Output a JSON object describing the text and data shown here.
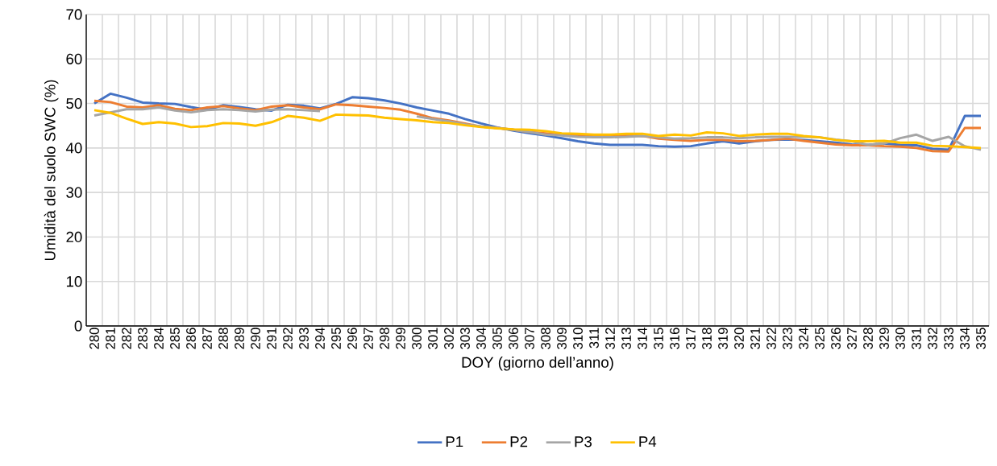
{
  "chart_data": {
    "type": "line",
    "xlabel": "DOY (giorno dell’anno)",
    "ylabel": "Umidità del suolo SWC (%)",
    "categories": [
      "280",
      "281",
      "282",
      "283",
      "284",
      "285",
      "286",
      "287",
      "288",
      "289",
      "290",
      "291",
      "292",
      "293",
      "294",
      "295",
      "296",
      "297",
      "298",
      "299",
      "300",
      "301",
      "302",
      "303",
      "304",
      "305",
      "306",
      "307",
      "308",
      "309",
      "310",
      "311",
      "312",
      "313",
      "314",
      "315",
      "316",
      "317",
      "318",
      "319",
      "320",
      "321",
      "322",
      "323",
      "324",
      "325",
      "326",
      "327",
      "328",
      "329",
      "330",
      "331",
      "332",
      "333",
      "334",
      "335"
    ],
    "series": [
      {
        "name": "P1",
        "color": "#4472c4",
        "values": [
          50,
          52.2,
          51.3,
          50.2,
          50,
          49.9,
          49.2,
          48.6,
          49.6,
          49.2,
          48.7,
          48.4,
          49.7,
          49.5,
          48.9,
          49.9,
          51.4,
          51.2,
          50.7,
          50,
          49.1,
          48.4,
          47.7,
          46.5,
          45.5,
          44.6,
          43.9,
          43.3,
          42.8,
          42.2,
          41.5,
          41,
          40.7,
          40.7,
          40.7,
          40.4,
          40.3,
          40.4,
          41,
          41.5,
          41,
          41.5,
          41.8,
          41.9,
          41.8,
          41.5,
          41.2,
          40.8,
          40.7,
          41,
          40.7,
          40.6,
          39.8,
          39.6,
          47.2,
          47.2
        ]
      },
      {
        "name": "P2",
        "color": "#ed7d31",
        "values": [
          50.6,
          50.3,
          49.3,
          49.1,
          49.6,
          48.8,
          48.5,
          49.1,
          49.4,
          48.9,
          48.5,
          49.3,
          49.6,
          49.1,
          48.7,
          49.8,
          49.6,
          49.3,
          49,
          48.6,
          47.7,
          46.7,
          46.2,
          45.5,
          44.8,
          44.5,
          44.1,
          43.6,
          43.3,
          42.9,
          42.9,
          42.7,
          42.9,
          42.9,
          42.7,
          42.1,
          41.8,
          41.6,
          41.8,
          41.8,
          41.5,
          41.6,
          41.8,
          42.1,
          41.6,
          41.2,
          40.8,
          40.6,
          40.6,
          40.4,
          40.3,
          40,
          39.3,
          39.2,
          44.5,
          44.5
        ]
      },
      {
        "name": "P3",
        "color": "#a5a5a5",
        "values": [
          47.3,
          48,
          48.7,
          48.7,
          49.1,
          48.4,
          48,
          48.5,
          48.7,
          48.5,
          48.2,
          48.6,
          48.7,
          48.5,
          48.3,
          null,
          null,
          null,
          null,
          null,
          47.1,
          46.5,
          46,
          45.3,
          44.8,
          44.5,
          44.1,
          43.6,
          43,
          42.8,
          42.5,
          42.4,
          42.4,
          42.5,
          42.7,
          42.4,
          42.1,
          42.2,
          42.4,
          42.4,
          42.2,
          42.4,
          42.5,
          42.5,
          42.5,
          42.4,
          41.9,
          41.5,
          40.7,
          41,
          42.2,
          43,
          41.6,
          42.5,
          40.4,
          39.6
        ]
      },
      {
        "name": "P4",
        "color": "#ffc000",
        "values": [
          48.5,
          47.9,
          46.6,
          45.4,
          45.8,
          45.5,
          44.7,
          44.9,
          45.6,
          45.5,
          45,
          45.8,
          47.2,
          46.8,
          46.1,
          47.5,
          47.4,
          47.3,
          46.8,
          46.5,
          46.2,
          45.8,
          45.6,
          45.1,
          44.7,
          44.4,
          44.2,
          44.1,
          43.8,
          43.3,
          43.2,
          43,
          43,
          43.2,
          43.2,
          42.7,
          43,
          42.8,
          43.5,
          43.3,
          42.7,
          43,
          43.2,
          43.2,
          42.7,
          42.4,
          41.8,
          41.5,
          41.5,
          41.6,
          41.2,
          41.2,
          40.5,
          40.4,
          40.2,
          40
        ]
      }
    ],
    "ylim": [
      0,
      70
    ],
    "yticks": [
      0,
      10,
      20,
      30,
      40,
      50,
      60,
      70
    ],
    "grid": true,
    "legend": "bottom",
    "marker": "none",
    "line_style": "solid"
  }
}
